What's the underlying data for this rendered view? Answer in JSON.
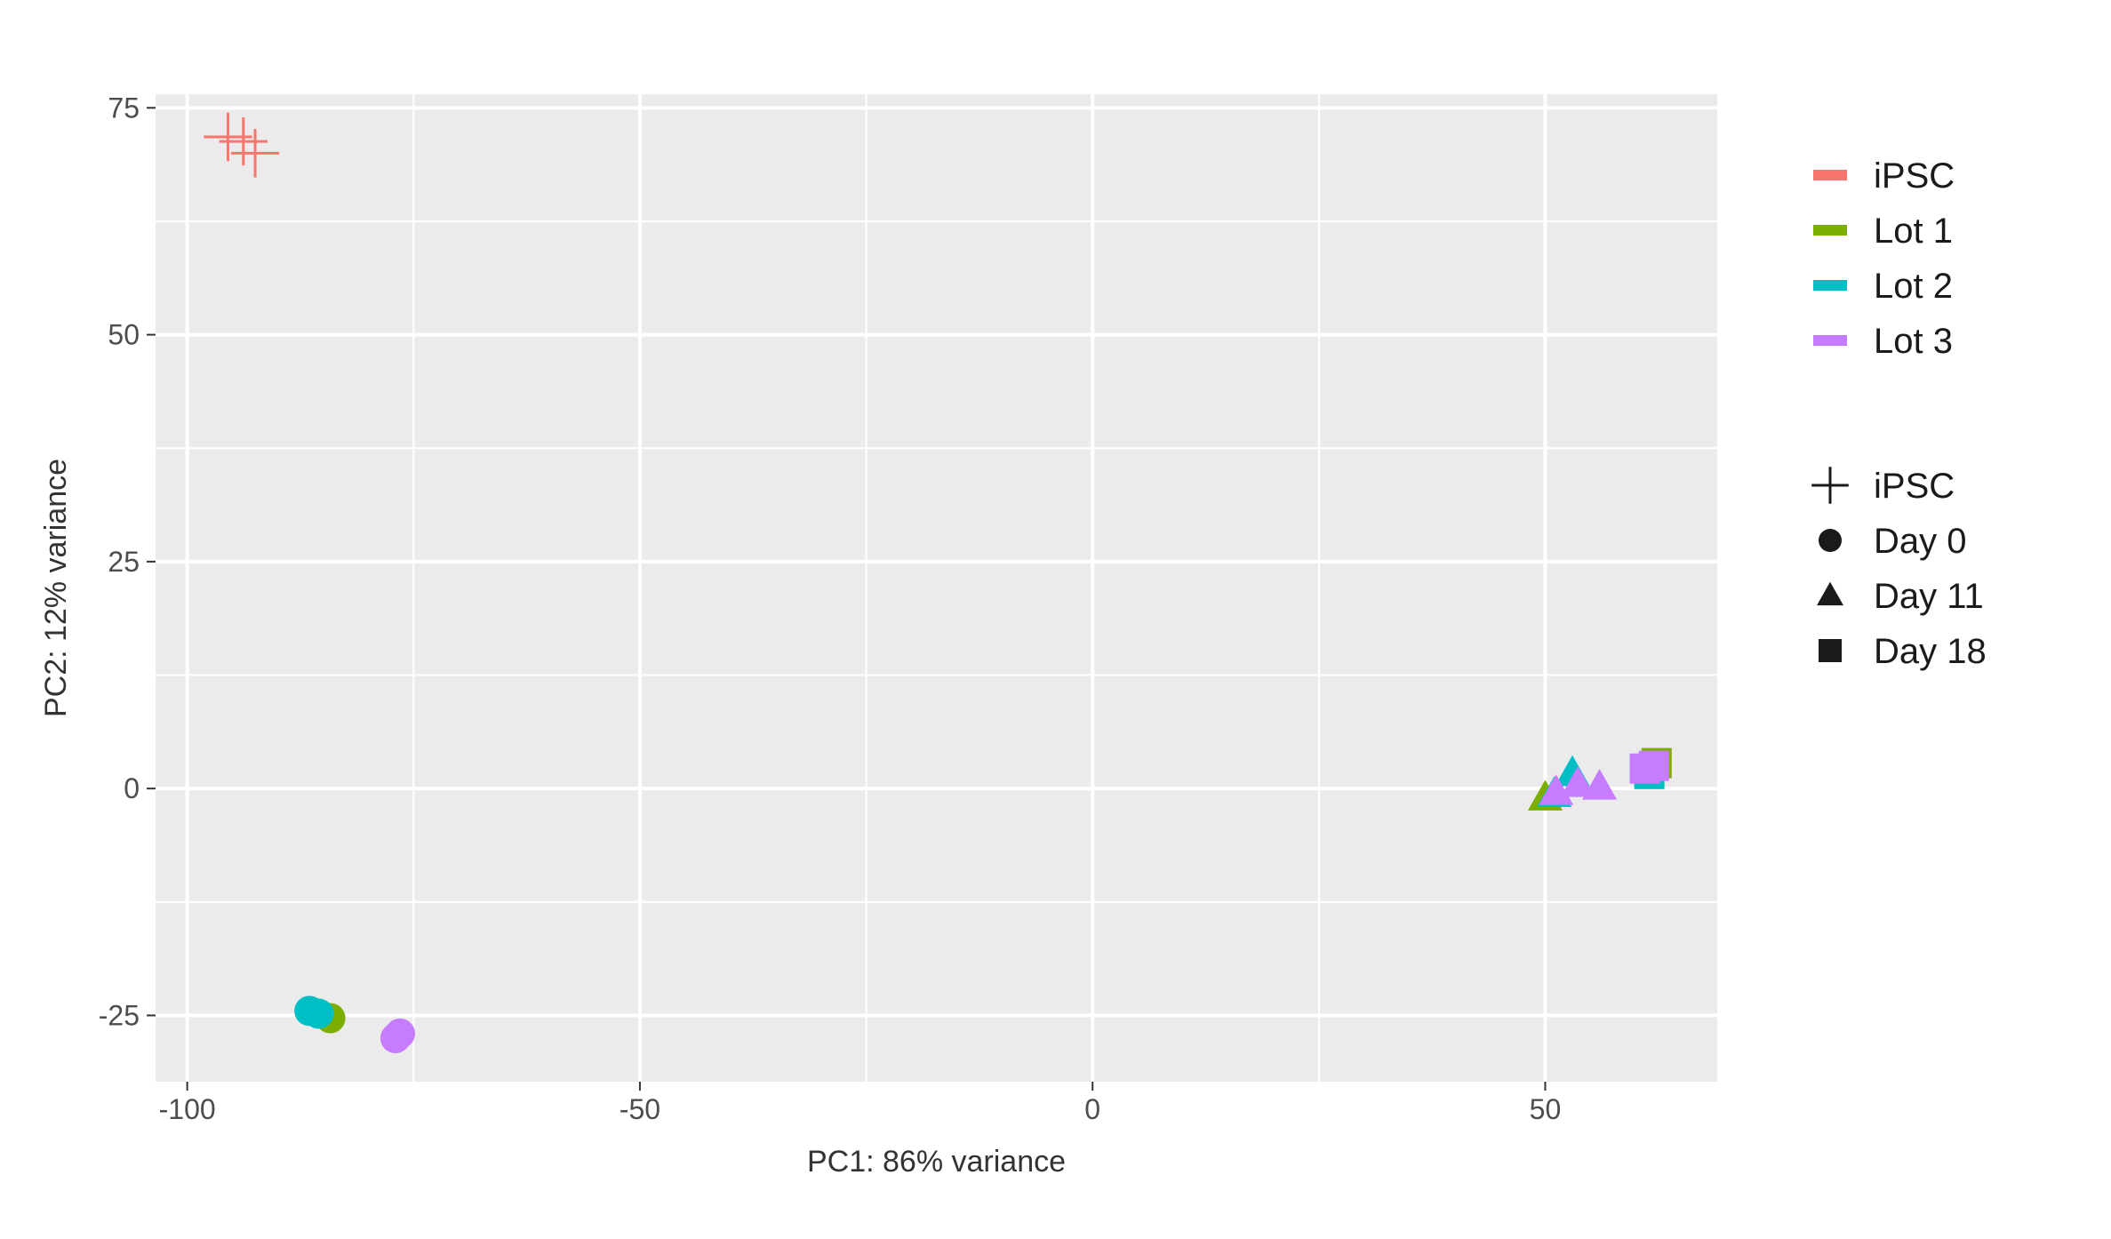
{
  "chart_data": {
    "type": "scatter",
    "title": "",
    "xlabel": "PC1: 86% variance",
    "ylabel": "PC2: 12% variance",
    "xlim": [
      -103.5,
      69
    ],
    "ylim": [
      -32.3,
      76.5
    ],
    "x_ticks": [
      -100,
      -50,
      0,
      50
    ],
    "y_ticks": [
      -25,
      0,
      25,
      50,
      75
    ],
    "x_tick_labels": [
      "-100",
      "-50",
      "0",
      "50"
    ],
    "y_tick_labels": [
      "-25",
      "0",
      "25",
      "50",
      "75"
    ],
    "grid": true,
    "background": "#ebebeb",
    "legend_position": "right",
    "color_legend": [
      {
        "label": "iPSC",
        "color": "#F8766D"
      },
      {
        "label": "Lot 1",
        "color": "#7CAE00"
      },
      {
        "label": "Lot 2",
        "color": "#00BFC4"
      },
      {
        "label": "Lot 3",
        "color": "#C77CFF"
      }
    ],
    "shape_legend": [
      {
        "label": "iPSC",
        "shape": "plus"
      },
      {
        "label": "Day 0",
        "shape": "circle"
      },
      {
        "label": "Day 11",
        "shape": "triangle"
      },
      {
        "label": "Day 18",
        "shape": "square"
      }
    ],
    "points": [
      {
        "x": -95.5,
        "y": 71.8,
        "lot": "iPSC",
        "stage": "iPSC"
      },
      {
        "x": -93.8,
        "y": 71.3,
        "lot": "iPSC",
        "stage": "iPSC"
      },
      {
        "x": -92.5,
        "y": 70.0,
        "lot": "iPSC",
        "stage": "iPSC"
      },
      {
        "x": -84.2,
        "y": -25.3,
        "lot": "Lot 1",
        "stage": "Day 0"
      },
      {
        "x": -86.5,
        "y": -24.5,
        "lot": "Lot 2",
        "stage": "Day 0"
      },
      {
        "x": -85.5,
        "y": -24.8,
        "lot": "Lot 2",
        "stage": "Day 0"
      },
      {
        "x": -77.0,
        "y": -27.5,
        "lot": "Lot 3",
        "stage": "Day 0"
      },
      {
        "x": -76.5,
        "y": -27.0,
        "lot": "Lot 3",
        "stage": "Day 0"
      },
      {
        "x": 50.0,
        "y": -1.0,
        "lot": "Lot 1",
        "stage": "Day 11"
      },
      {
        "x": 51.0,
        "y": -0.6,
        "lot": "Lot 2",
        "stage": "Day 11"
      },
      {
        "x": 53.0,
        "y": 1.7,
        "lot": "Lot 2",
        "stage": "Day 11"
      },
      {
        "x": 51.2,
        "y": -0.4,
        "lot": "Lot 3",
        "stage": "Day 11"
      },
      {
        "x": 53.6,
        "y": 0.5,
        "lot": "Lot 3",
        "stage": "Day 11"
      },
      {
        "x": 56.0,
        "y": 0.2,
        "lot": "Lot 3",
        "stage": "Day 11"
      },
      {
        "x": 62.3,
        "y": 2.8,
        "lot": "Lot 1",
        "stage": "Day 18"
      },
      {
        "x": 61.5,
        "y": 1.6,
        "lot": "Lot 2",
        "stage": "Day 18"
      },
      {
        "x": 61.0,
        "y": 2.2,
        "lot": "Lot 3",
        "stage": "Day 18"
      },
      {
        "x": 62.0,
        "y": 2.5,
        "lot": "Lot 3",
        "stage": "Day 18"
      }
    ]
  }
}
